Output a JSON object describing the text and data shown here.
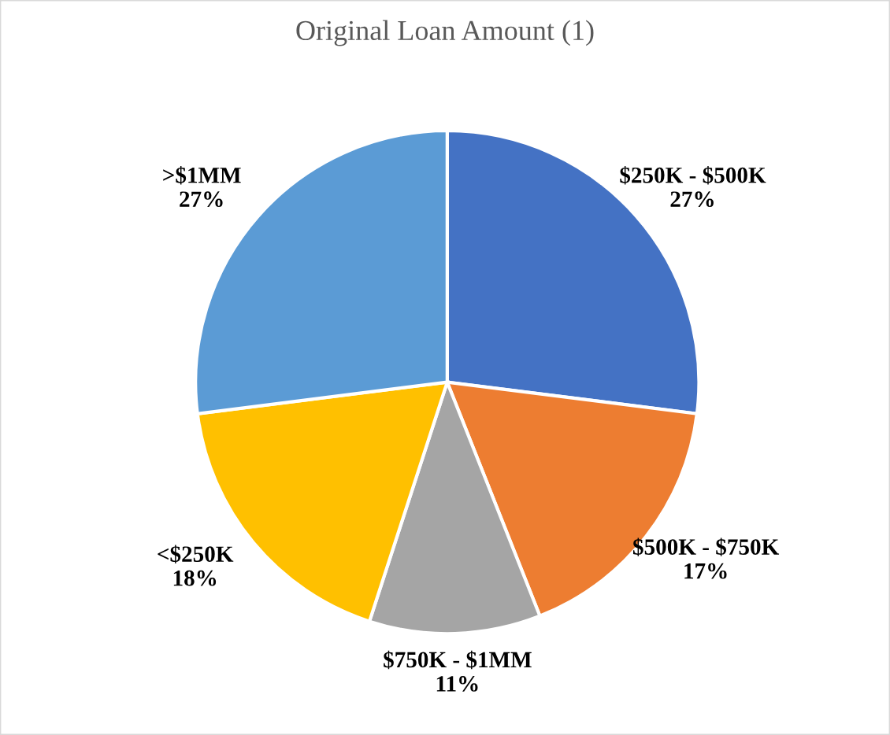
{
  "chart_data": {
    "type": "pie",
    "title": "Original Loan Amount (1)",
    "categories": [
      "$250K - $500K",
      "$500K - $750K",
      "$750K - $1MM",
      "<$250K",
      ">$1MM"
    ],
    "values": [
      27,
      17,
      11,
      18,
      27
    ],
    "colors": [
      "#4472c4",
      "#ed7d31",
      "#a5a5a5",
      "#ffc000",
      "#5b9bd5"
    ],
    "value_labels": [
      "27%",
      "17%",
      "11%",
      "18%",
      "27%"
    ],
    "legend": false
  }
}
